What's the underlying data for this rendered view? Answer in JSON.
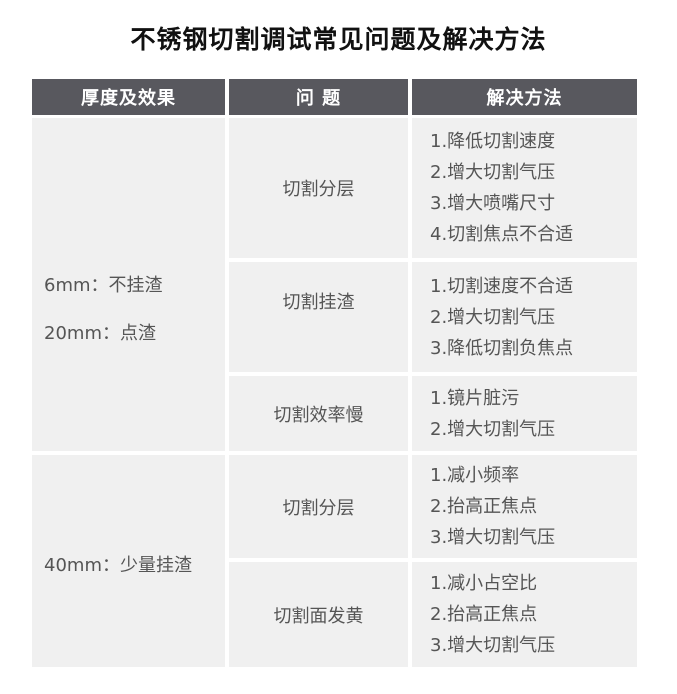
{
  "title": "不锈钢切割调试常见问题及解决方法",
  "headers": [
    "厚度及效果",
    "问 题",
    "解决方法"
  ],
  "groups": [
    {
      "thickness": [
        "6mm：不挂渣",
        "20mm：点渣"
      ],
      "rows": [
        {
          "problem": "切割分层",
          "solutions": [
            "1.降低切割速度",
            "2.增大切割气压",
            "3.增大喷嘴尺寸",
            "4.切割焦点不合适"
          ]
        },
        {
          "problem": "切割挂渣",
          "solutions": [
            "1.切割速度不合适",
            "2.增大切割气压",
            "3.降低切割负焦点"
          ]
        },
        {
          "problem": "切割效率慢",
          "solutions": [
            "1.镜片脏污",
            "2.增大切割气压"
          ]
        }
      ]
    },
    {
      "thickness": [
        "40mm：少量挂渣"
      ],
      "rows": [
        {
          "problem": "切割分层",
          "solutions": [
            "1.减小频率",
            "2.抬高正焦点",
            "3.增大切割气压"
          ]
        },
        {
          "problem": "切割面发黄",
          "solutions": [
            "1.减小占空比",
            "2.抬高正焦点",
            "3.增大切割气压"
          ]
        }
      ]
    }
  ],
  "colors": {
    "header_bg": "#58585e",
    "cell_bg": "#f0f0f0"
  }
}
